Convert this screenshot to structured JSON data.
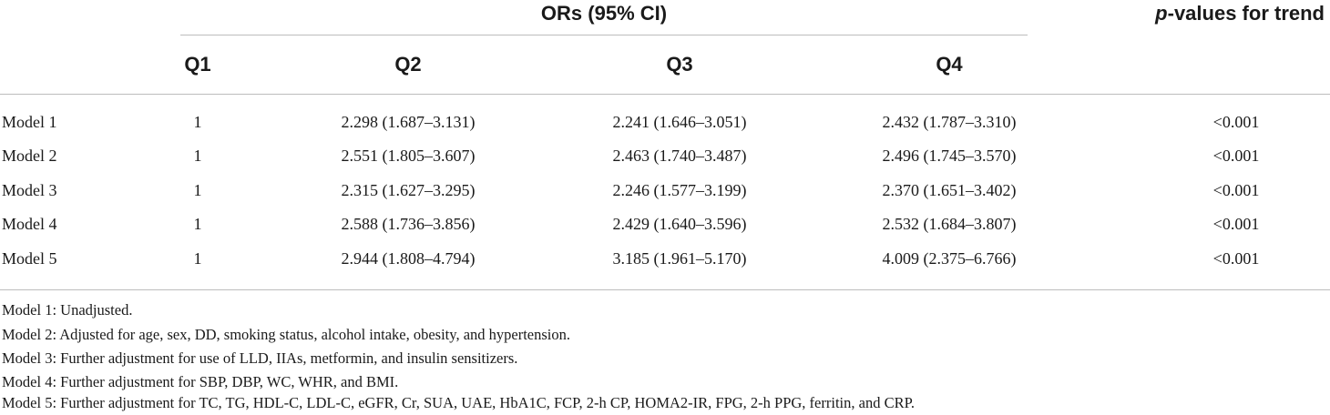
{
  "table": {
    "header_group": "ORs (95% CI)",
    "trend_header_italic": "p",
    "trend_header_rest": "-values for trend",
    "columns": [
      "Q1",
      "Q2",
      "Q3",
      "Q4"
    ],
    "rows": [
      {
        "label": "Model 1",
        "q1": "1",
        "q2": "2.298 (1.687–3.131)",
        "q3": "2.241 (1.646–3.051)",
        "q4": "2.432 (1.787–3.310)",
        "p": "<0.001"
      },
      {
        "label": "Model 2",
        "q1": "1",
        "q2": "2.551 (1.805–3.607)",
        "q3": "2.463 (1.740–3.487)",
        "q4": "2.496 (1.745–3.570)",
        "p": "<0.001"
      },
      {
        "label": "Model 3",
        "q1": "1",
        "q2": "2.315 (1.627–3.295)",
        "q3": "2.246 (1.577–3.199)",
        "q4": "2.370 (1.651–3.402)",
        "p": "<0.001"
      },
      {
        "label": "Model 4",
        "q1": "1",
        "q2": "2.588 (1.736–3.856)",
        "q3": "2.429 (1.640–3.596)",
        "q4": "2.532 (1.684–3.807)",
        "p": "<0.001"
      },
      {
        "label": "Model 5",
        "q1": "1",
        "q2": "2.944 (1.808–4.794)",
        "q3": "3.185 (1.961–5.170)",
        "q4": "4.009 (2.375–6.766)",
        "p": "<0.001"
      }
    ]
  },
  "footnotes": [
    "Model 1: Unadjusted.",
    "Model 2: Adjusted for age, sex, DD, smoking status, alcohol intake, obesity, and hypertension.",
    "Model 3: Further adjustment for use of LLD, IIAs, metformin, and insulin sensitizers.",
    "Model 4: Further adjustment for SBP, DBP, WC, WHR, and BMI.",
    "Model 5: Further adjustment for TC, TG, HDL-C, LDL-C, eGFR, Cr, SUA, UAE, HbA1C, FCP, 2-h CP, HOMA2-IR, FPG, 2-h PPG, ferritin, and CRP."
  ]
}
